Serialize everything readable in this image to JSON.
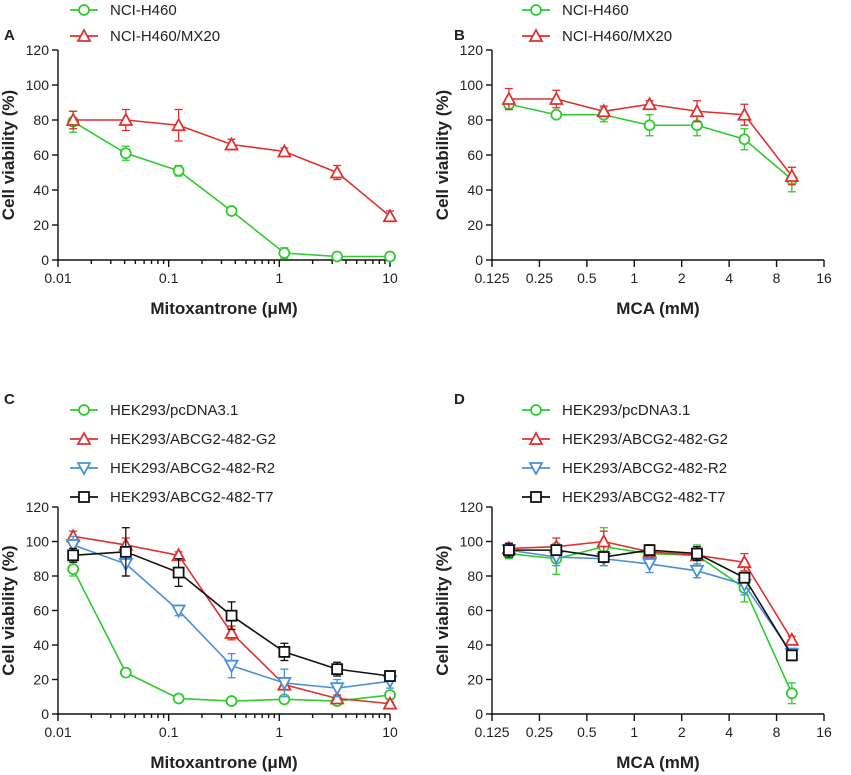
{
  "chart_data": [
    {
      "panel": "A",
      "type": "line",
      "xscale": "log10",
      "xlim": [
        0.01,
        10
      ],
      "ylim": [
        0,
        120
      ],
      "xticks": [
        0.01,
        0.1,
        1,
        10
      ],
      "xtick_labels": [
        "0.01",
        "0.1",
        "1",
        "10"
      ],
      "yticks": [
        0,
        20,
        40,
        60,
        80,
        100,
        120
      ],
      "ytick_labels": [
        "0",
        "20",
        "40",
        "60",
        "80",
        "100",
        "120"
      ],
      "xlabel": "Mitoxantrone (μM)",
      "ylabel": "Cell viability (%)",
      "x": [
        0.0137,
        0.041,
        0.123,
        0.37,
        1.11,
        3.33,
        10
      ],
      "series": [
        {
          "name": "NCI-H460",
          "color": "#2ecc2e",
          "marker": "circle",
          "values": [
            79,
            61,
            51,
            28,
            4,
            2,
            2
          ],
          "errors": [
            6,
            4,
            3,
            1,
            3,
            2,
            1
          ]
        },
        {
          "name": "NCI-H460/MX20",
          "color": "#e03030",
          "marker": "triangle-up",
          "values": [
            80,
            80,
            77,
            66,
            62,
            50,
            25
          ],
          "errors": [
            5,
            6,
            9,
            3,
            2,
            4,
            3
          ]
        }
      ]
    },
    {
      "panel": "B",
      "type": "line",
      "xscale": "log2",
      "xlim": [
        0.125,
        16
      ],
      "ylim": [
        0,
        120
      ],
      "xticks": [
        0.125,
        0.25,
        0.5,
        1,
        2,
        4,
        8,
        16
      ],
      "xtick_labels": [
        "0.125",
        "0.25",
        "0.5",
        "1",
        "2",
        "4",
        "8",
        "16"
      ],
      "yticks": [
        0,
        20,
        40,
        60,
        80,
        100,
        120
      ],
      "ytick_labels": [
        "0",
        "20",
        "40",
        "60",
        "80",
        "100",
        "120"
      ],
      "xlabel": "MCA (mM)",
      "ylabel": "Cell viability (%)",
      "x": [
        0.16,
        0.32,
        0.64,
        1.25,
        2.5,
        5,
        10
      ],
      "series": [
        {
          "name": "NCI-H460",
          "color": "#2ecc2e",
          "marker": "circle",
          "values": [
            89,
            83,
            83,
            77,
            77,
            69,
            46
          ],
          "errors": [
            3,
            2,
            4,
            6,
            6,
            6,
            7
          ]
        },
        {
          "name": "NCI-H460/MX20",
          "color": "#e03030",
          "marker": "triangle-up",
          "values": [
            92,
            92,
            85,
            89,
            85,
            83,
            48
          ],
          "errors": [
            6,
            5,
            3,
            2,
            6,
            6,
            5
          ]
        }
      ]
    },
    {
      "panel": "C",
      "type": "line",
      "xscale": "log10",
      "xlim": [
        0.01,
        10
      ],
      "ylim": [
        0,
        120
      ],
      "xticks": [
        0.01,
        0.1,
        1,
        10
      ],
      "xtick_labels": [
        "0.01",
        "0.1",
        "1",
        "10"
      ],
      "yticks": [
        0,
        20,
        40,
        60,
        80,
        100,
        120
      ],
      "ytick_labels": [
        "0",
        "20",
        "40",
        "60",
        "80",
        "100",
        "120"
      ],
      "xlabel": "Mitoxantrone (μM)",
      "ylabel": "Cell viability (%)",
      "x": [
        0.0137,
        0.041,
        0.123,
        0.37,
        1.11,
        3.33,
        10
      ],
      "series": [
        {
          "name": "HEK293/pcDNA3.1",
          "color": "#2ecc2e",
          "marker": "circle",
          "values": [
            84,
            24,
            9,
            7.5,
            8.5,
            7.5,
            11
          ],
          "errors": [
            4,
            2,
            1,
            1,
            1,
            1,
            2
          ]
        },
        {
          "name": "HEK293/ABCG2-482-G2",
          "color": "#e03030",
          "marker": "triangle-up",
          "values": [
            103,
            98,
            92,
            47,
            17,
            9,
            6
          ],
          "errors": [
            3,
            4,
            2,
            4,
            3,
            2,
            1
          ]
        },
        {
          "name": "HEK293/ABCG2-482-R2",
          "color": "#4a90d9",
          "marker": "triangle-down",
          "values": [
            98,
            87,
            60,
            28,
            18,
            15,
            19
          ],
          "errors": [
            5,
            7,
            3,
            7,
            8,
            5,
            4
          ]
        },
        {
          "name": "HEK293/ABCG2-482-T7",
          "color": "#111111",
          "marker": "square",
          "values": [
            92,
            94,
            82,
            57,
            36,
            26,
            22
          ],
          "errors": [
            4,
            14,
            8,
            8,
            5,
            4,
            3
          ]
        }
      ]
    },
    {
      "panel": "D",
      "type": "line",
      "xscale": "log2",
      "xlim": [
        0.125,
        16
      ],
      "ylim": [
        0,
        120
      ],
      "xticks": [
        0.125,
        0.25,
        0.5,
        1,
        2,
        4,
        8,
        16
      ],
      "xtick_labels": [
        "0.125",
        "0.25",
        "0.5",
        "1",
        "2",
        "4",
        "8",
        "16"
      ],
      "yticks": [
        0,
        20,
        40,
        60,
        80,
        100,
        120
      ],
      "ytick_labels": [
        "0",
        "20",
        "40",
        "60",
        "80",
        "100",
        "120"
      ],
      "xlabel": "MCA (mM)",
      "ylabel": "Cell viability (%)",
      "x": [
        0.16,
        0.32,
        0.64,
        1.25,
        2.5,
        5,
        10
      ],
      "series": [
        {
          "name": "HEK293/pcDNA3.1",
          "color": "#2ecc2e",
          "marker": "circle",
          "values": [
            93,
            90,
            97,
            93,
            92,
            73,
            12
          ],
          "errors": [
            3,
            9,
            11,
            5,
            6,
            8,
            6
          ]
        },
        {
          "name": "HEK293/ABCG2-482-G2",
          "color": "#e03030",
          "marker": "triangle-up",
          "values": [
            96,
            97,
            100,
            94,
            92,
            88,
            43
          ],
          "errors": [
            3,
            5,
            6,
            4,
            3,
            5,
            2
          ]
        },
        {
          "name": "HEK293/ABCG2-482-R2",
          "color": "#4a90d9",
          "marker": "triangle-down",
          "values": [
            95,
            91,
            90,
            87,
            83,
            75,
            35
          ],
          "errors": [
            3,
            5,
            4,
            5,
            4,
            6,
            3
          ]
        },
        {
          "name": "HEK293/ABCG2-482-T7",
          "color": "#111111",
          "marker": "square",
          "values": [
            95,
            95,
            91,
            95,
            93,
            79,
            34
          ],
          "errors": [
            4,
            3,
            3,
            3,
            4,
            3,
            3
          ]
        }
      ]
    }
  ]
}
